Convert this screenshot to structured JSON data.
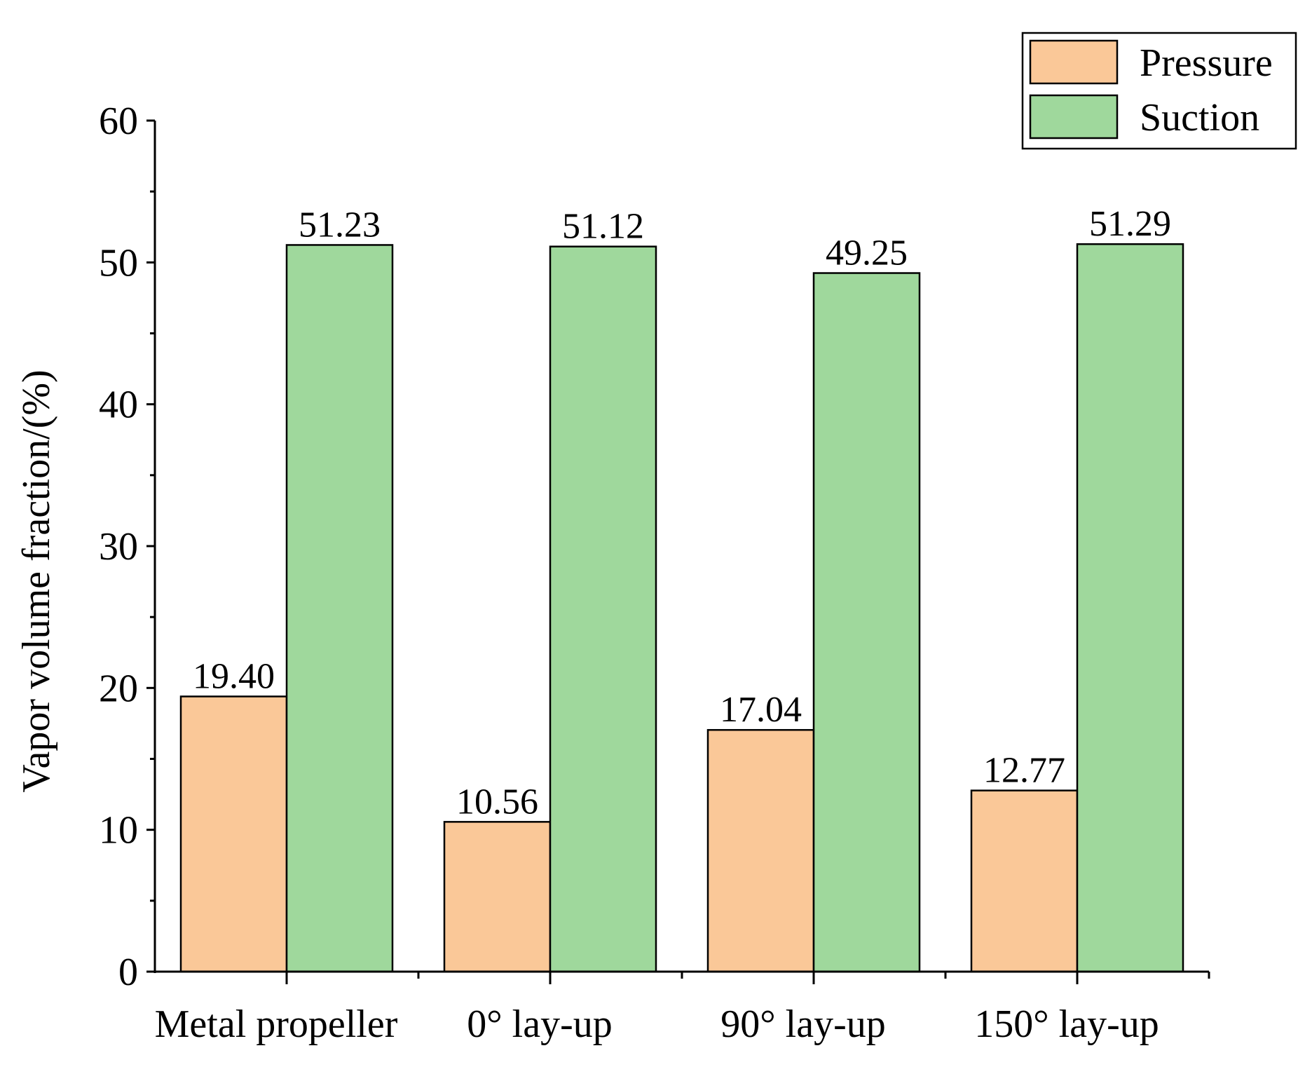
{
  "chart_data": {
    "type": "bar",
    "title": "",
    "xlabel": "",
    "ylabel": "Vapor volume fraction/(%)",
    "ylim": [
      0,
      60
    ],
    "yticks": [
      "0",
      "10",
      "20",
      "30",
      "40",
      "50",
      "60"
    ],
    "grid": false,
    "legend_position": "top-right",
    "categories": [
      "Metal propeller",
      "0° lay-up",
      "90° lay-up",
      "150° lay-up"
    ],
    "series": [
      {
        "name": "Pressure",
        "color": "#fac898",
        "values": [
          19.4,
          10.56,
          17.04,
          12.77
        ],
        "labels": [
          "19.40",
          "10.56",
          "17.04",
          "12.77"
        ]
      },
      {
        "name": "Suction",
        "color": "#9fd89c",
        "values": [
          51.23,
          51.12,
          49.25,
          51.29
        ],
        "labels": [
          "51.23",
          "51.12",
          "49.25",
          "51.29"
        ]
      }
    ]
  }
}
